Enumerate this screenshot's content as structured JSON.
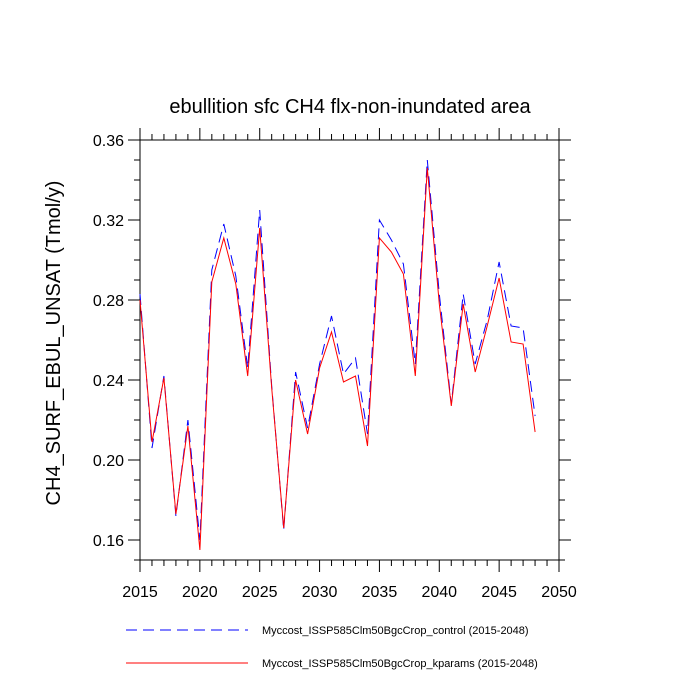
{
  "chart_data": {
    "type": "line",
    "title": "ebullition sfc CH4 flx-non-inundated area",
    "xlabel": "",
    "ylabel": "CH4_SURF_EBUL_UNSAT  (Tmol/y)",
    "xlim": [
      2015,
      2050
    ],
    "ylim": [
      0.15,
      0.36
    ],
    "xticks": [
      2015,
      2020,
      2025,
      2030,
      2035,
      2040,
      2045,
      2050
    ],
    "yticks": [
      0.16,
      0.2,
      0.24,
      0.28,
      0.32,
      0.36
    ],
    "ytick_labels": [
      "0.16",
      "0.20",
      "0.24",
      "0.28",
      "0.32",
      "0.36"
    ],
    "grid": false,
    "legend_position": "bottom",
    "x": [
      2015,
      2016,
      2017,
      2018,
      2019,
      2020,
      2021,
      2022,
      2023,
      2024,
      2025,
      2026,
      2027,
      2028,
      2029,
      2030,
      2031,
      2032,
      2033,
      2034,
      2035,
      2036,
      2037,
      2038,
      2039,
      2040,
      2041,
      2042,
      2043,
      2044,
      2045,
      2046,
      2047,
      2048
    ],
    "series": [
      {
        "name": "Myccost_ISSP585Clm50BgcCrop_control (2015-2048)",
        "color": "#0000ff",
        "style": "dashed",
        "values": [
          0.283,
          0.206,
          0.242,
          0.172,
          0.22,
          0.16,
          0.295,
          0.318,
          0.292,
          0.246,
          0.325,
          0.237,
          0.165,
          0.244,
          0.216,
          0.248,
          0.272,
          0.243,
          0.251,
          0.213,
          0.32,
          0.31,
          0.298,
          0.248,
          0.35,
          0.283,
          0.228,
          0.283,
          0.248,
          0.27,
          0.299,
          0.267,
          0.266,
          0.222
        ]
      },
      {
        "name": "Myccost_ISSP585Clm50BgcCrop_kparams (2015-2048)",
        "color": "#ff0000",
        "style": "solid",
        "values": [
          0.28,
          0.209,
          0.241,
          0.173,
          0.217,
          0.155,
          0.289,
          0.311,
          0.288,
          0.242,
          0.316,
          0.236,
          0.166,
          0.24,
          0.213,
          0.246,
          0.264,
          0.239,
          0.242,
          0.207,
          0.311,
          0.304,
          0.293,
          0.242,
          0.346,
          0.278,
          0.227,
          0.278,
          0.244,
          0.267,
          0.291,
          0.259,
          0.258,
          0.214
        ]
      }
    ]
  }
}
